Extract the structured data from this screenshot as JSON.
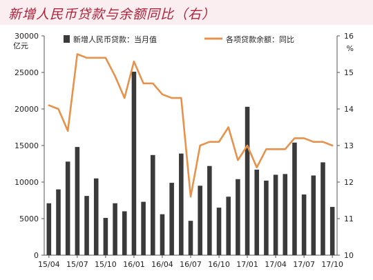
{
  "header": {
    "title": "新增人民币贷款与余额同比（右）"
  },
  "chart_data": {
    "type": "bar+line",
    "x": [
      "15/04",
      "15/05",
      "15/06",
      "15/07",
      "15/08",
      "15/09",
      "15/10",
      "15/11",
      "15/12",
      "16/01",
      "16/02",
      "16/03",
      "16/04",
      "16/05",
      "16/06",
      "16/07",
      "16/08",
      "16/09",
      "16/10",
      "16/11",
      "16/12",
      "17/01",
      "17/02",
      "17/03",
      "17/04",
      "17/05",
      "17/06",
      "17/07",
      "17/08",
      "17/09",
      "17/10"
    ],
    "x_tick_labels": [
      "15/04",
      "15/07",
      "15/10",
      "16/01",
      "16/04",
      "16/07",
      "16/10",
      "17/01",
      "17/04",
      "17/07",
      "17/10"
    ],
    "y_left": {
      "label": "亿元",
      "range": [
        0,
        30000
      ],
      "ticks": [
        "0",
        "5000",
        "10000",
        "15000",
        "20000",
        "25000",
        "30000"
      ]
    },
    "y_right": {
      "label": "%",
      "range": [
        10,
        16
      ],
      "ticks": [
        "10",
        "11",
        "12",
        "13",
        "14",
        "15",
        "16"
      ]
    },
    "series": [
      {
        "name": "新增人民币贷款：当月值",
        "type": "bar",
        "axis": "left",
        "color": "#3a3a3a",
        "values": [
          7100,
          9000,
          12800,
          14800,
          8100,
          10500,
          5100,
          7100,
          6000,
          25100,
          7300,
          13700,
          5600,
          9900,
          13900,
          4700,
          9500,
          12200,
          6500,
          8000,
          10400,
          20300,
          11700,
          10200,
          11000,
          11100,
          15400,
          8300,
          10900,
          12700,
          6600
        ]
      },
      {
        "name": "各项贷款余额：同比",
        "type": "line",
        "axis": "right",
        "color": "#e8914a",
        "values": [
          14.1,
          14.0,
          13.4,
          15.5,
          15.4,
          15.4,
          15.4,
          14.9,
          14.3,
          15.3,
          14.7,
          14.7,
          14.4,
          14.3,
          14.3,
          11.6,
          13.0,
          13.1,
          13.1,
          13.5,
          12.6,
          13.0,
          12.4,
          12.9,
          12.9,
          12.9,
          13.2,
          13.2,
          13.1,
          13.1,
          13.0
        ]
      }
    ],
    "legend": "top"
  }
}
